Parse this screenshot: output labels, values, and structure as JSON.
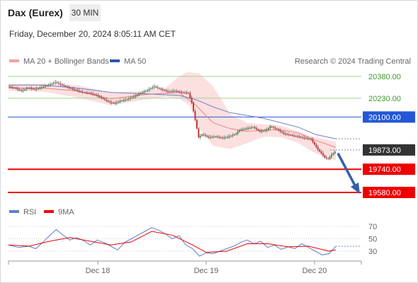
{
  "header": {
    "instrument": "Dax (Eurex)",
    "timeframe": "30 MIN",
    "datetime": "Friday, December 20, 2024 8:05:11 AM CET"
  },
  "legend": {
    "bollinger_label": "MA 20 + Bollinger Bands",
    "ma50_label": "MA 50",
    "credit": "Research © 2024 Trading Central",
    "rsi_label": "RSI",
    "rsi_ma_label": "9MA"
  },
  "colors": {
    "candle_up": "#2e8b2e",
    "candle_down": "#cc2222",
    "bollinger_fill": "#fbd5d5",
    "ma20": "#f08080",
    "ma50": "#7080c8",
    "resistance": "#a5d395",
    "pivot": "#2457d6",
    "support": "#ee0000",
    "current": "#333333",
    "arrow": "#3360a8",
    "rsi": "#5b7fd0",
    "rsi_ma": "#ee0000"
  },
  "chart_data": [
    {
      "type": "candlestick",
      "title": "Dax (Eurex)",
      "timeframe": "30 MIN",
      "x_ticks": [
        "Dec 18",
        "Dec 19",
        "Dec 20"
      ],
      "y_range": [
        19490,
        20560
      ],
      "price_path": [
        [
          0,
          20310
        ],
        [
          4,
          20300
        ],
        [
          8,
          20280
        ],
        [
          12,
          20300
        ],
        [
          16,
          20290
        ],
        [
          20,
          20305
        ],
        [
          24,
          20320
        ],
        [
          28,
          20340
        ],
        [
          32,
          20320
        ],
        [
          36,
          20300
        ],
        [
          40,
          20285
        ],
        [
          44,
          20270
        ],
        [
          48,
          20265
        ],
        [
          52,
          20250
        ],
        [
          56,
          20225
        ],
        [
          60,
          20200
        ],
        [
          63,
          20195
        ],
        [
          66,
          20210
        ],
        [
          70,
          20220
        ],
        [
          74,
          20240
        ],
        [
          78,
          20265
        ],
        [
          82,
          20285
        ],
        [
          86,
          20310
        ],
        [
          90,
          20290
        ],
        [
          94,
          20275
        ],
        [
          98,
          20280
        ],
        [
          102,
          20270
        ],
        [
          106,
          20265
        ],
        [
          108,
          20200
        ],
        [
          110,
          20080
        ],
        [
          112,
          19960
        ],
        [
          114,
          19980
        ],
        [
          118,
          19960
        ],
        [
          122,
          19965
        ],
        [
          126,
          19955
        ],
        [
          130,
          19965
        ],
        [
          134,
          19985
        ],
        [
          136,
          20010
        ],
        [
          140,
          20020
        ],
        [
          144,
          20030
        ],
        [
          148,
          20000
        ],
        [
          152,
          20010
        ],
        [
          154,
          20035
        ],
        [
          158,
          20015
        ],
        [
          162,
          19985
        ],
        [
          166,
          19975
        ],
        [
          170,
          19965
        ],
        [
          174,
          19955
        ],
        [
          178,
          19945
        ],
        [
          182,
          19875
        ],
        [
          184,
          19850
        ],
        [
          186,
          19820
        ],
        [
          188,
          19810
        ],
        [
          190,
          19840
        ],
        [
          192,
          19860
        ]
      ],
      "ma20": [
        [
          0,
          20300
        ],
        [
          20,
          20300
        ],
        [
          40,
          20280
        ],
        [
          60,
          20225
        ],
        [
          80,
          20255
        ],
        [
          100,
          20270
        ],
        [
          110,
          20180
        ],
        [
          120,
          20060
        ],
        [
          130,
          20020
        ],
        [
          140,
          20000
        ],
        [
          150,
          20010
        ],
        [
          160,
          20010
        ],
        [
          170,
          19990
        ],
        [
          180,
          19940
        ],
        [
          192,
          19890
        ]
      ],
      "ma50": [
        [
          0,
          20320
        ],
        [
          20,
          20320
        ],
        [
          40,
          20300
        ],
        [
          60,
          20270
        ],
        [
          80,
          20260
        ],
        [
          100,
          20250
        ],
        [
          110,
          20220
        ],
        [
          120,
          20170
        ],
        [
          130,
          20130
        ],
        [
          140,
          20110
        ],
        [
          150,
          20090
        ],
        [
          160,
          20060
        ],
        [
          170,
          20030
        ],
        [
          180,
          19980
        ],
        [
          192,
          19950
        ]
      ],
      "bollinger": {
        "upper": [
          [
            0,
            20330
          ],
          [
            20,
            20330
          ],
          [
            40,
            20320
          ],
          [
            60,
            20270
          ],
          [
            80,
            20280
          ],
          [
            92,
            20300
          ],
          [
            100,
            20380
          ],
          [
            105,
            20410
          ],
          [
            112,
            20400
          ],
          [
            120,
            20310
          ],
          [
            126,
            20200
          ],
          [
            130,
            20120
          ],
          [
            140,
            20060
          ],
          [
            150,
            20050
          ],
          [
            160,
            20040
          ],
          [
            170,
            20000
          ],
          [
            180,
            19960
          ],
          [
            192,
            19930
          ]
        ],
        "lower": [
          [
            192,
            19800
          ],
          [
            180,
            19850
          ],
          [
            170,
            19920
          ],
          [
            160,
            19960
          ],
          [
            150,
            19965
          ],
          [
            140,
            19920
          ],
          [
            130,
            19880
          ],
          [
            120,
            19900
          ],
          [
            112,
            20020
          ],
          [
            106,
            20180
          ],
          [
            100,
            20230
          ],
          [
            92,
            20240
          ],
          [
            80,
            20220
          ],
          [
            60,
            20180
          ],
          [
            40,
            20235
          ],
          [
            20,
            20275
          ],
          [
            0,
            20280
          ]
        ]
      },
      "levels": [
        {
          "label": "20380.00",
          "value": 20380,
          "kind": "resistance"
        },
        {
          "label": "20230.00",
          "value": 20230,
          "kind": "resistance"
        },
        {
          "label": "20100.00",
          "value": 20100,
          "kind": "pivot"
        },
        {
          "label": "19873.00",
          "value": 19873,
          "kind": "current"
        },
        {
          "label": "19740.00",
          "value": 19740,
          "kind": "support"
        },
        {
          "label": "19580.00",
          "value": 19580,
          "kind": "support"
        }
      ],
      "projection": {
        "from": [
          192,
          19850
        ],
        "to": [
          204,
          19580
        ]
      }
    },
    {
      "type": "line",
      "title": "RSI",
      "y_ticks": [
        70,
        50,
        30
      ],
      "y_range": [
        0,
        80
      ],
      "rsi": [
        [
          0,
          40
        ],
        [
          6,
          36
        ],
        [
          12,
          38
        ],
        [
          16,
          34
        ],
        [
          20,
          44
        ],
        [
          24,
          55
        ],
        [
          28,
          65
        ],
        [
          32,
          56
        ],
        [
          36,
          48
        ],
        [
          40,
          52
        ],
        [
          44,
          47
        ],
        [
          48,
          40
        ],
        [
          52,
          48
        ],
        [
          56,
          44
        ],
        [
          60,
          38
        ],
        [
          64,
          32
        ],
        [
          68,
          44
        ],
        [
          72,
          50
        ],
        [
          76,
          56
        ],
        [
          80,
          62
        ],
        [
          84,
          68
        ],
        [
          88,
          64
        ],
        [
          92,
          58
        ],
        [
          96,
          50
        ],
        [
          100,
          55
        ],
        [
          104,
          40
        ],
        [
          108,
          34
        ],
        [
          112,
          22
        ],
        [
          116,
          27
        ],
        [
          120,
          26
        ],
        [
          124,
          30
        ],
        [
          128,
          34
        ],
        [
          132,
          38
        ],
        [
          136,
          44
        ],
        [
          140,
          48
        ],
        [
          144,
          42
        ],
        [
          148,
          46
        ],
        [
          152,
          36
        ],
        [
          156,
          40
        ],
        [
          160,
          33
        ],
        [
          164,
          37
        ],
        [
          168,
          34
        ],
        [
          172,
          42
        ],
        [
          176,
          36
        ],
        [
          180,
          30
        ],
        [
          184,
          24
        ],
        [
          188,
          26
        ],
        [
          192,
          38
        ]
      ],
      "rsi_ma": [
        [
          0,
          40
        ],
        [
          12,
          38
        ],
        [
          24,
          46
        ],
        [
          36,
          52
        ],
        [
          48,
          46
        ],
        [
          60,
          40
        ],
        [
          72,
          45
        ],
        [
          84,
          62
        ],
        [
          96,
          56
        ],
        [
          108,
          40
        ],
        [
          116,
          28
        ],
        [
          128,
          30
        ],
        [
          140,
          42
        ],
        [
          152,
          42
        ],
        [
          164,
          37
        ],
        [
          176,
          38
        ],
        [
          188,
          30
        ],
        [
          192,
          32
        ]
      ]
    }
  ]
}
